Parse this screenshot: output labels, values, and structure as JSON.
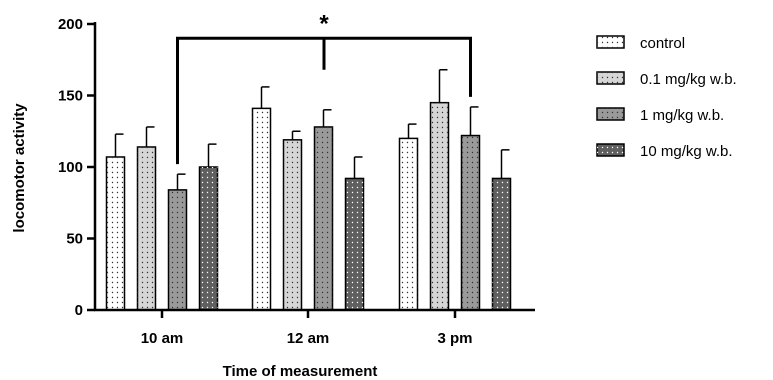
{
  "chart_data": {
    "type": "bar",
    "xlabel": "Time of measurement",
    "ylabel": "locomotor activity",
    "ylim": [
      0,
      200
    ],
    "yticks": [
      0,
      50,
      100,
      150,
      200
    ],
    "categories": [
      "10 am",
      "12 am",
      "3 pm"
    ],
    "series": [
      {
        "name": "control",
        "values": [
          107,
          141,
          120
        ],
        "errors": [
          16,
          15,
          10
        ],
        "fill": "dotted-white"
      },
      {
        "name": "0.1 mg/kg w.b.",
        "values": [
          114,
          119,
          145
        ],
        "errors": [
          14,
          6,
          23
        ],
        "fill": "dotted-light-gray"
      },
      {
        "name": "1 mg/kg w.b.",
        "values": [
          84,
          128,
          122
        ],
        "errors": [
          11,
          12,
          20
        ],
        "fill": "dotted-mid-gray"
      },
      {
        "name": "10 mg/kg w.b.",
        "values": [
          100,
          92,
          92
        ],
        "errors": [
          16,
          15,
          20
        ],
        "fill": "dotted-dark-gray"
      }
    ],
    "significance": {
      "label": "*",
      "between": "1 mg/kg w.b. at 10 am and 3 pm",
      "level": 190
    },
    "legend": "right",
    "grid": false,
    "error_bars": "upper only"
  },
  "colors": {
    "control": "#ffffff",
    "low_dose": "#d6d6d6",
    "mid_dose": "#9a9a9a",
    "high_dose": "#5f5f5f",
    "axis": "#000000"
  }
}
